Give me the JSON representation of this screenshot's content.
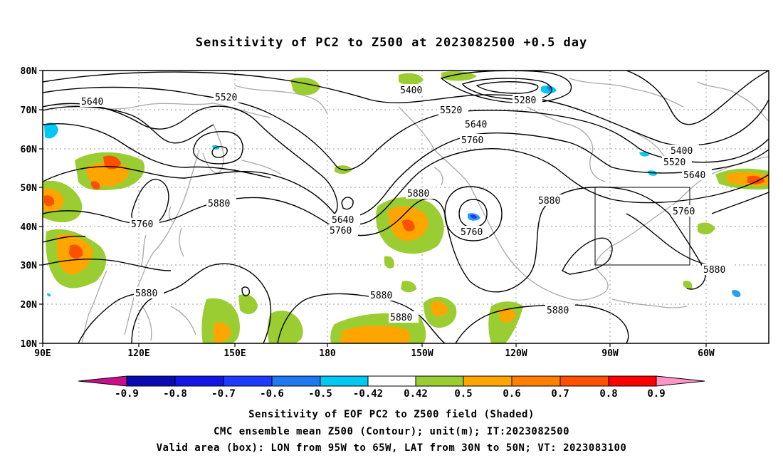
{
  "title": "Sensitivity of PC2 to Z500 at 2023082500 +0.5 day",
  "axes": {
    "lat_labels": [
      "80N",
      "70N",
      "60N",
      "50N",
      "40N",
      "30N",
      "20N",
      "10N"
    ],
    "lon_labels": [
      "90E",
      "120E",
      "150E",
      "180",
      "150W",
      "120W",
      "90W",
      "60W"
    ]
  },
  "contour_labels": [
    {
      "id": "c5640a",
      "text": "5640"
    },
    {
      "id": "c5520a",
      "text": "5520"
    },
    {
      "id": "c5400a",
      "text": "5400"
    },
    {
      "id": "c5280",
      "text": "5280"
    },
    {
      "id": "c5520b",
      "text": "5520"
    },
    {
      "id": "c5640b",
      "text": "5640"
    },
    {
      "id": "c5760a",
      "text": "5760"
    },
    {
      "id": "c5400b",
      "text": "5400"
    },
    {
      "id": "c5520c",
      "text": "5520"
    },
    {
      "id": "c5640c",
      "text": "5640"
    },
    {
      "id": "c5880a",
      "text": "5880"
    },
    {
      "id": "c5760b",
      "text": "5760"
    },
    {
      "id": "c5640d",
      "text": "5640"
    },
    {
      "id": "c5760c",
      "text": "5760"
    },
    {
      "id": "c5880b",
      "text": "5880"
    },
    {
      "id": "c5760d",
      "text": "5760"
    },
    {
      "id": "c5880c",
      "text": "5880"
    },
    {
      "id": "c5760e",
      "text": "5760"
    },
    {
      "id": "c5880d",
      "text": "5880"
    },
    {
      "id": "c5880e",
      "text": "5880"
    },
    {
      "id": "c5880f",
      "text": "5880"
    },
    {
      "id": "c5880g",
      "text": "5880"
    },
    {
      "id": "c5880h",
      "text": "5880"
    }
  ],
  "valid_area": {
    "lon_from": "95W",
    "lon_to": "65W",
    "lat_from": "30N",
    "lat_to": "50N"
  },
  "colorbar": {
    "labels": [
      "-0.9",
      "-0.8",
      "-0.7",
      "-0.6",
      "-0.5",
      "-0.42",
      "0.42",
      "0.5",
      "0.6",
      "0.7",
      "0.8",
      "0.9"
    ],
    "colors": {
      "low_tri": "#c8108a",
      "blue1": "#0a0ab4",
      "blue2": "#1414e6",
      "blue3": "#1e3cff",
      "blue4": "#1e78f0",
      "blue5": "#28a0f0",
      "blue6": "#00c8f0",
      "white": "#ffffff",
      "green": "#9acd32",
      "orange1": "#ffa500",
      "orange2": "#ff7f00",
      "orange3": "#ff5000",
      "red1": "#ff2810",
      "red2": "#ff0000",
      "high_tri": "#ff96c8"
    }
  },
  "captions": {
    "line1": "Sensitivity of EOF PC2 to Z500 field (Shaded)",
    "line2": "CMC ensemble mean Z500 (Contour); unit(m); IT:2023082500",
    "line3": "Valid area (box): LON from 95W to 65W, LAT from 30N to 50N; VT: 2023083100"
  }
}
